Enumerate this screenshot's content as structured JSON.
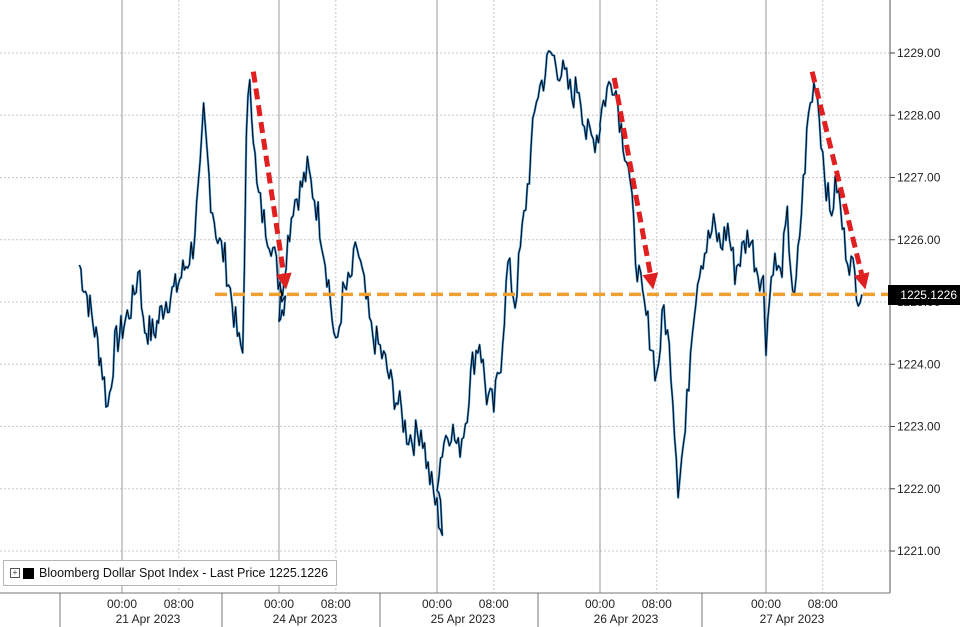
{
  "chart_data": {
    "type": "line",
    "series": [
      {
        "name": "Bloomberg Dollar Spot Index - Last Price",
        "color": "#000000",
        "shadow_color": "#3a8fd6"
      }
    ],
    "y_ticks": [
      "1221.00",
      "1222.00",
      "1223.00",
      "1224.00",
      "1225.00",
      "1226.00",
      "1227.00",
      "1228.00",
      "1229.00"
    ],
    "ylim": [
      1220.6,
      1229.7
    ],
    "x_hours": [
      "00:00",
      "08:00",
      "00:00",
      "08:00",
      "00:00",
      "08:00",
      "00:00",
      "08:00",
      "00:00",
      "08:00"
    ],
    "x_dates": [
      "21 Apr 2023",
      "24 Apr 2023",
      "25 Apr 2023",
      "26 Apr 2023",
      "27 Apr 2023"
    ],
    "points": [
      [
        "20 Apr 18:00",
        1225.6
      ],
      [
        "20 Apr 19:30",
        1224.9
      ],
      [
        "20 Apr 21:00",
        1224.1
      ],
      [
        "20 Apr 22:00",
        1223.3
      ],
      [
        "20 Apr 23:00",
        1224.3
      ],
      [
        "21 Apr 00:30",
        1224.7
      ],
      [
        "21 Apr 01:30",
        1225.0
      ],
      [
        "21 Apr 02:30",
        1225.6
      ],
      [
        "21 Apr 03:00",
        1224.6
      ],
      [
        "21 Apr 04:30",
        1224.5
      ],
      [
        "21 Apr 06:00",
        1225.0
      ],
      [
        "21 Apr 07:30",
        1225.2
      ],
      [
        "21 Apr 09:00",
        1225.6
      ],
      [
        "21 Apr 10:00",
        1225.9
      ],
      [
        "21 Apr 11:00",
        1227.0
      ],
      [
        "21 Apr 11:30",
        1228.0
      ],
      [
        "21 Apr 12:30",
        1226.7
      ],
      [
        "21 Apr 13:30",
        1226.0
      ],
      [
        "21 Apr 14:30",
        1225.7
      ],
      [
        "21 Apr 15:30",
        1225.0
      ],
      [
        "21 Apr 16:30",
        1224.3
      ],
      [
        "21 Apr 17:00",
        1224.2
      ],
      [
        "21 Apr 17:30",
        1227.5
      ],
      [
        "21 Apr 18:00",
        1228.7
      ],
      [
        "21 Apr 19:00",
        1226.8
      ],
      [
        "21 Apr 20:00",
        1226.3
      ],
      [
        "21 Apr 21:00",
        1226.0
      ],
      [
        "21 Apr 22:00",
        1225.4
      ],
      [
        "21 Apr 23:00",
        1225.1
      ],
      [
        "24 Apr 00:00",
        1224.8
      ],
      [
        "24 Apr 01:00",
        1225.8
      ],
      [
        "24 Apr 02:00",
        1226.6
      ],
      [
        "24 Apr 03:00",
        1226.8
      ],
      [
        "24 Apr 04:00",
        1227.1
      ],
      [
        "24 Apr 05:00",
        1226.7
      ],
      [
        "24 Apr 06:00",
        1226.1
      ],
      [
        "24 Apr 07:00",
        1225.3
      ],
      [
        "24 Apr 08:00",
        1224.2
      ],
      [
        "24 Apr 09:00",
        1225.1
      ],
      [
        "24 Apr 10:00",
        1225.3
      ],
      [
        "24 Apr 11:00",
        1225.9
      ],
      [
        "24 Apr 12:00",
        1225.2
      ],
      [
        "24 Apr 13:00",
        1224.5
      ],
      [
        "24 Apr 14:00",
        1224.3
      ],
      [
        "24 Apr 15:00",
        1224.0
      ],
      [
        "24 Apr 16:00",
        1223.6
      ],
      [
        "24 Apr 17:00",
        1223.3
      ],
      [
        "24 Apr 18:00",
        1222.9
      ],
      [
        "24 Apr 19:00",
        1222.8
      ],
      [
        "24 Apr 20:00",
        1223.0
      ],
      [
        "24 Apr 21:00",
        1222.3
      ],
      [
        "24 Apr 22:00",
        1221.8
      ],
      [
        "24 Apr 23:00",
        1221.3
      ],
      [
        "25 Apr 00:00",
        1222.2
      ],
      [
        "25 Apr 01:00",
        1222.8
      ],
      [
        "25 Apr 02:00",
        1223.0
      ],
      [
        "25 Apr 03:00",
        1222.6
      ],
      [
        "25 Apr 04:00",
        1223.1
      ],
      [
        "25 Apr 05:00",
        1224.0
      ],
      [
        "25 Apr 06:00",
        1224.4
      ],
      [
        "25 Apr 07:00",
        1223.5
      ],
      [
        "25 Apr 08:00",
        1223.3
      ],
      [
        "25 Apr 09:00",
        1224.1
      ],
      [
        "25 Apr 10:00",
        1225.6
      ],
      [
        "25 Apr 11:00",
        1225.0
      ],
      [
        "25 Apr 12:00",
        1226.1
      ],
      [
        "25 Apr 13:00",
        1227.1
      ],
      [
        "25 Apr 14:00",
        1228.3
      ],
      [
        "25 Apr 15:00",
        1228.6
      ],
      [
        "25 Apr 16:00",
        1229.0
      ],
      [
        "25 Apr 17:00",
        1228.8
      ],
      [
        "25 Apr 18:00",
        1228.6
      ],
      [
        "25 Apr 19:00",
        1228.3
      ],
      [
        "25 Apr 20:00",
        1228.5
      ],
      [
        "25 Apr 21:00",
        1227.7
      ],
      [
        "25 Apr 22:00",
        1227.6
      ],
      [
        "25 Apr 23:00",
        1227.8
      ],
      [
        "26 Apr 00:00",
        1228.0
      ],
      [
        "26 Apr 01:00",
        1228.4
      ],
      [
        "26 Apr 02:00",
        1228.6
      ],
      [
        "26 Apr 03:00",
        1227.8
      ],
      [
        "26 Apr 04:00",
        1227.2
      ],
      [
        "26 Apr 05:00",
        1225.8
      ],
      [
        "26 Apr 06:00",
        1225.0
      ],
      [
        "26 Apr 07:00",
        1224.5
      ],
      [
        "26 Apr 08:00",
        1223.8
      ],
      [
        "26 Apr 09:00",
        1224.9
      ],
      [
        "26 Apr 10:00",
        1224.0
      ],
      [
        "26 Apr 11:00",
        1222.1
      ],
      [
        "26 Apr 12:00",
        1222.9
      ],
      [
        "26 Apr 13:00",
        1224.7
      ],
      [
        "26 Apr 14:00",
        1225.6
      ],
      [
        "26 Apr 15:00",
        1225.9
      ],
      [
        "26 Apr 16:00",
        1226.2
      ],
      [
        "26 Apr 17:00",
        1225.9
      ],
      [
        "26 Apr 18:00",
        1226.2
      ],
      [
        "26 Apr 19:00",
        1225.5
      ],
      [
        "26 Apr 20:00",
        1225.8
      ],
      [
        "26 Apr 21:00",
        1226.1
      ],
      [
        "26 Apr 22:00",
        1225.6
      ],
      [
        "26 Apr 23:00",
        1225.3
      ],
      [
        "27 Apr 00:00",
        1224.4
      ],
      [
        "27 Apr 01:00",
        1225.7
      ],
      [
        "27 Apr 02:00",
        1225.4
      ],
      [
        "27 Apr 03:00",
        1226.3
      ],
      [
        "27 Apr 04:00",
        1224.9
      ],
      [
        "27 Apr 05:00",
        1226.5
      ],
      [
        "27 Apr 06:00",
        1228.0
      ],
      [
        "27 Apr 07:00",
        1228.6
      ],
      [
        "27 Apr 08:00",
        1227.4
      ],
      [
        "27 Apr 09:00",
        1226.4
      ],
      [
        "27 Apr 10:00",
        1226.9
      ],
      [
        "27 Apr 11:00",
        1226.0
      ],
      [
        "27 Apr 12:00",
        1225.6
      ],
      [
        "27 Apr 13:00",
        1225.2
      ],
      [
        "27 Apr 13:30",
        1225.1226
      ]
    ],
    "reference_line": {
      "value": 1225.1226,
      "color": "#f0a030",
      "style": "dashed"
    },
    "annotations": [
      {
        "type": "arrow",
        "color": "#e02020",
        "from": [
          "21 Apr 18:30",
          1228.7
        ],
        "to": [
          "24 Apr 01:00",
          1225.2
        ]
      },
      {
        "type": "arrow",
        "color": "#e02020",
        "from": [
          "26 Apr 02:00",
          1228.6
        ],
        "to": [
          "26 Apr 07:30",
          1225.2
        ]
      },
      {
        "type": "arrow",
        "color": "#e02020",
        "from": [
          "27 Apr 06:30",
          1228.7
        ],
        "to": [
          "27 Apr 14:00",
          1225.2
        ]
      }
    ],
    "grid": true,
    "legend": {
      "label": "Bloomberg Dollar Spot Index - Last Price 1225.1226",
      "position": "bottom-left"
    },
    "last_value_label": "1225.1226"
  }
}
